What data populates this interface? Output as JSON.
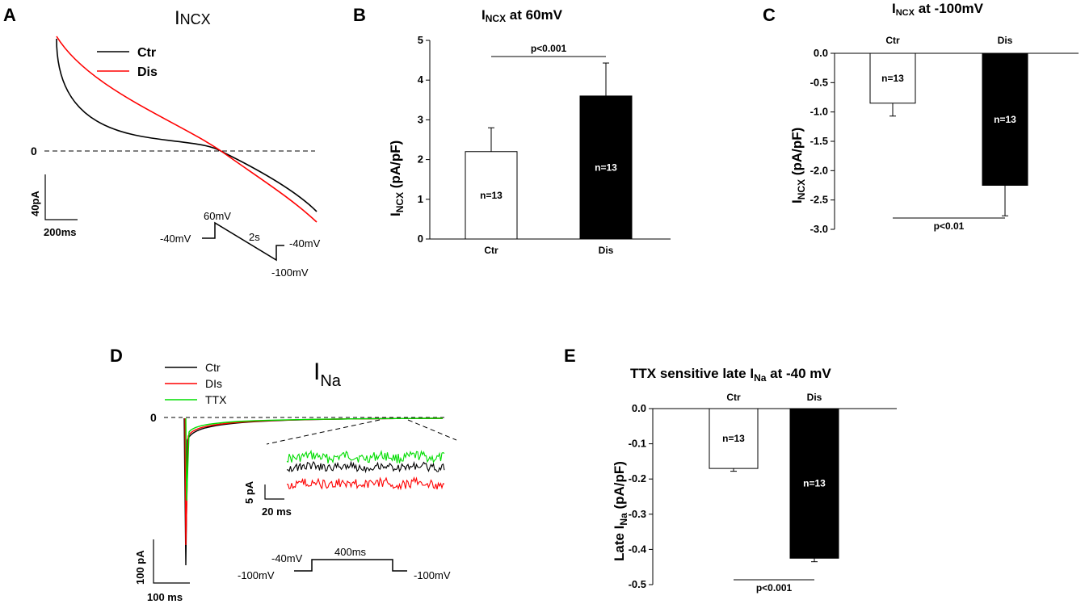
{
  "colors": {
    "ctr": "#000000",
    "dis": "#ff0000",
    "ttx": "#00dd00",
    "bar_ctr": "#ffffff",
    "bar_dis": "#000000"
  },
  "panel_labels": [
    "A",
    "B",
    "C",
    "D",
    "E"
  ],
  "panelA": {
    "title_main": "I",
    "title_sub": "NCX",
    "legend": [
      {
        "name": "Ctr",
        "color": "#000000"
      },
      {
        "name": "Dis",
        "color": "#ff0000"
      }
    ],
    "zero_label": "0",
    "scale_y": "40pA",
    "scale_x": "200ms",
    "protocol": {
      "hold": "-40mV",
      "peak": "60mV",
      "duration": "2s",
      "end": "-100mV",
      "return": "-40mV"
    }
  },
  "panelD": {
    "title_main": "I",
    "title_sub": "Na",
    "legend": [
      {
        "name": "Ctr",
        "color": "#000000"
      },
      {
        "name": "DIs",
        "color": "#ff0000"
      },
      {
        "name": "TTX",
        "color": "#00dd00"
      }
    ],
    "zero_label": "0",
    "scale_y": "100 pA",
    "scale_x": "100 ms",
    "inset_scale_y": "5 pA",
    "inset_scale_x": "20 ms",
    "protocol": {
      "hold": "-100mV",
      "step": "-40mV",
      "duration": "400ms",
      "return": "-100mV"
    }
  },
  "chart_data": [
    {
      "panel": "B",
      "type": "bar",
      "title_main": "I",
      "title_sub": "NCX",
      "title_rest": " at 60mV",
      "categories": [
        "Ctr",
        "Dis"
      ],
      "values": [
        2.2,
        3.6
      ],
      "errors": [
        0.6,
        0.83
      ],
      "n_labels": [
        "n=13",
        "n=13"
      ],
      "ylabel_main": "I",
      "ylabel_sub": "NCX",
      "ylabel_rest": " (pA/pF)",
      "ylim": [
        0,
        5
      ],
      "yticks": [
        "0",
        "1",
        "2",
        "3",
        "4",
        "5"
      ],
      "significance": "p<0.001"
    },
    {
      "panel": "C",
      "type": "bar",
      "title_main": "I",
      "title_sub": "NCX",
      "title_rest": " at -100mV",
      "categories": [
        "Ctr",
        "Dis"
      ],
      "values": [
        -0.85,
        -2.25
      ],
      "errors": [
        0.22,
        0.52
      ],
      "n_labels": [
        "n=13",
        "n=13"
      ],
      "ylabel_main": "I",
      "ylabel_sub": "NCX",
      "ylabel_rest": " (pA/pF)",
      "ylim": [
        -3.0,
        0
      ],
      "yticks": [
        "0.0",
        "-0.5",
        "-1.0",
        "-1.5",
        "-2.0",
        "-2.5",
        "-3.0"
      ],
      "significance": "p<0.01"
    },
    {
      "panel": "E",
      "type": "bar",
      "title_pre": "TTX sensitive late I",
      "title_sub": "Na",
      "title_rest": " at -40 mV",
      "categories": [
        "Ctr",
        "Dis"
      ],
      "values": [
        -0.17,
        -0.425
      ],
      "errors": [
        0.008,
        0.01
      ],
      "n_labels": [
        "n=13",
        "n=13"
      ],
      "ylabel_main": "Late I",
      "ylabel_sub": "Na",
      "ylabel_rest": " (pA/pF)",
      "ylim": [
        -0.5,
        0
      ],
      "yticks": [
        "0.0",
        "-0.1",
        "-0.2",
        "-0.3",
        "-0.4",
        "-0.5"
      ],
      "significance": "p<0.001"
    }
  ]
}
